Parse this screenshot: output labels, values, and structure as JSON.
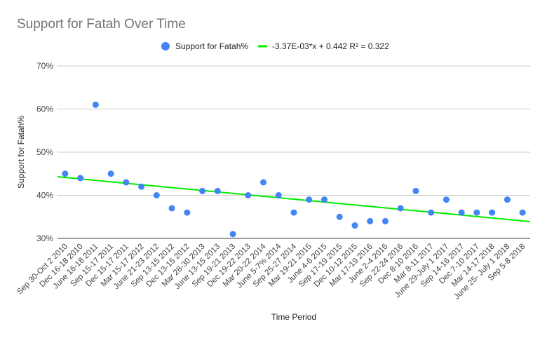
{
  "chart_data": {
    "type": "scatter",
    "title": "Support for Fatah Over Time",
    "xlabel": "Time Period",
    "ylabel": "Support for Fatah%",
    "ylim": [
      30,
      70
    ],
    "yticks": [
      "30%",
      "40%",
      "50%",
      "60%",
      "70%"
    ],
    "grid": true,
    "legend_position": "top",
    "categories": [
      "Sep 30-Oct 2 2010",
      "Dec 16-18 2010",
      "June 16-18 2011",
      "Sep 15-17 2011",
      "Dec 15-17 2011",
      "Mar 15-17 2012",
      "June 21-23 2012",
      "Sep 13-15 2012",
      "Dec 13-15 2012",
      "Mar 28-30 2013",
      "June 13-15 2013",
      "Sep 19-21 2013",
      "Dec 19-22 2013",
      "Mar 20-22 2014",
      "June 5-7% 2014",
      "Sep 25-27 2014",
      "Mar 19-21 2015",
      "June 4-6 2015",
      "Sep 17-19 2015",
      "Dec 10-12 2015",
      "Mar 17-19 2016",
      "June 2-4 2016",
      "Sep 22-24 2016",
      "Dec 8-10 2016",
      "Mar 8-11 2017",
      "June 29-July 1 2017",
      "Sep 14-16 2017",
      "Dec 7-10 2017",
      "Mar 14-17 2018",
      "June 25- July 1 2018",
      "Sep 5-8 2018"
    ],
    "series": [
      {
        "name": "Support for Fatah%",
        "color": "#4285f4",
        "marker": "circle",
        "values": [
          45,
          44,
          61,
          45,
          43,
          42,
          40,
          37,
          36,
          41,
          41,
          31,
          40,
          43,
          40,
          36,
          39,
          39,
          35,
          33,
          34,
          34,
          37,
          41,
          36,
          39,
          36,
          36,
          36,
          39,
          36
        ]
      }
    ],
    "trendline": {
      "label": "-3.37E-03*x + 0.442 R² = 0.322",
      "color": "#00ee00",
      "start_value": 44.3,
      "end_value": 33.9
    }
  }
}
